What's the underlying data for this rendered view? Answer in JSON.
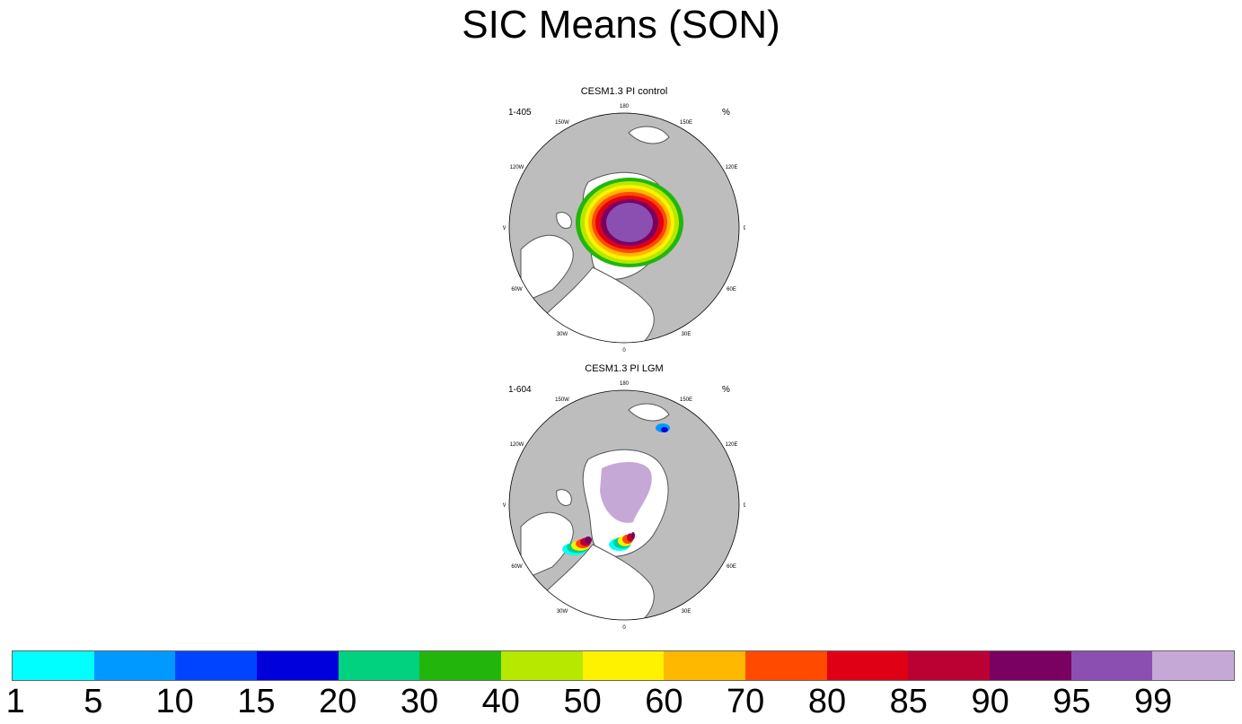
{
  "title": "SIC Means (SON)",
  "panels": [
    {
      "title": "CESM1.3 PI control",
      "left_label": "1-405",
      "right_label": "%",
      "lon_labels": [
        "180",
        "150E",
        "120E",
        "90E",
        "60E",
        "30E",
        "0",
        "30W",
        "60W",
        "90W",
        "120W",
        "150W"
      ],
      "ice_pattern": "pi-control"
    },
    {
      "title": "CESM1.3 PI LGM",
      "left_label": "1-604",
      "right_label": "%",
      "lon_labels": [
        "180",
        "150E",
        "120E",
        "90E",
        "60E",
        "30E",
        "0",
        "30W",
        "60W",
        "90W",
        "120W",
        "150W"
      ],
      "ice_pattern": "lgm"
    }
  ],
  "colorbar": {
    "labels": [
      "1",
      "5",
      "10",
      "15",
      "20",
      "30",
      "40",
      "50",
      "60",
      "70",
      "80",
      "85",
      "90",
      "95",
      "99"
    ],
    "colors": [
      "#00ffff",
      "#0099ff",
      "#0044ff",
      "#0000dd",
      "#00d27f",
      "#22b60c",
      "#b6e800",
      "#fff200",
      "#ffb800",
      "#ff4a00",
      "#e00016",
      "#bb0033",
      "#7a0062",
      "#8a4fb0",
      "#c6a8d6"
    ]
  },
  "colors": {
    "land": "#bdbdbd",
    "ocean": "#ffffff",
    "coast": "#555555"
  }
}
